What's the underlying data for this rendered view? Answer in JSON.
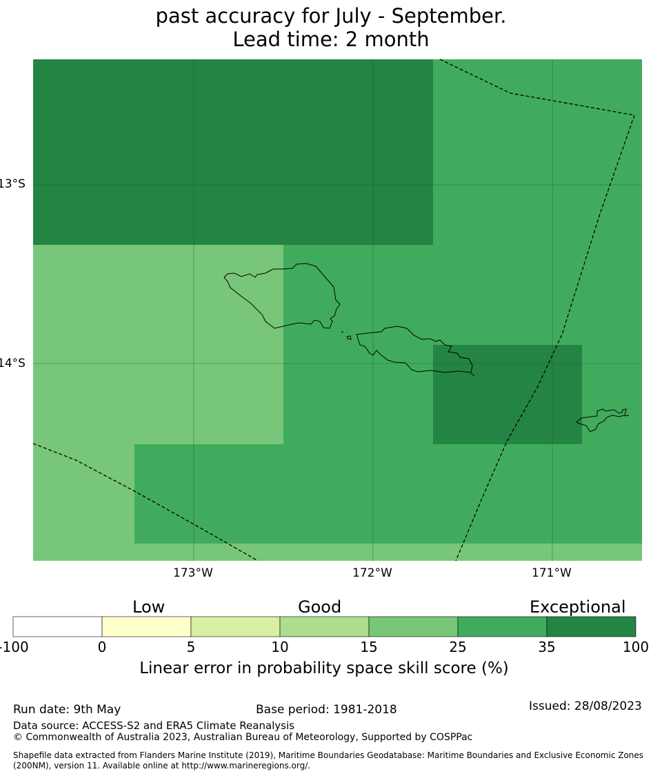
{
  "title": {
    "line1": "past accuracy for July - September.",
    "line2": "Lead time: 2 month"
  },
  "map": {
    "lat_labels": [
      "13°S",
      "14°S"
    ],
    "lon_labels": [
      "173°W",
      "172°W",
      "171°W"
    ],
    "colors": {
      "exceptional": "#238443",
      "band_25_35": "#41ab5d",
      "band_15_25": "#78c679",
      "coast": "#000000",
      "eez": "#000000"
    }
  },
  "colorbar": {
    "categories": [
      "Low",
      "Good",
      "Exceptional"
    ],
    "labels": [
      "-100",
      "0",
      "5",
      "10",
      "15",
      "25",
      "35",
      "100"
    ],
    "colors": [
      "#ffffff",
      "#ffffcc",
      "#d9f0a3",
      "#addd8e",
      "#78c679",
      "#41ab5d",
      "#238443"
    ],
    "title": "Linear error in probability space skill score (%)"
  },
  "footer": {
    "run_date": "Run date: 9th May",
    "base_period": "Base period: 1981-2018",
    "issued": "Issued: 28/08/2023",
    "data_source": "Data source: ACCESS-S2 and ERA5 Climate Reanalysis",
    "copyright": "© Commonwealth of Australia 2023, Australian Bureau of Meteorology, Supported by COSPPac",
    "shapefile_1": "Shapefile data extracted from Flanders Marine Institute (2019), Maritime Boundaries Geodatabase: Maritime Boundaries and Exclusive Economic Zones",
    "shapefile_2": "(200NM), version 11. Available online at http://www.marineregions.org/."
  }
}
